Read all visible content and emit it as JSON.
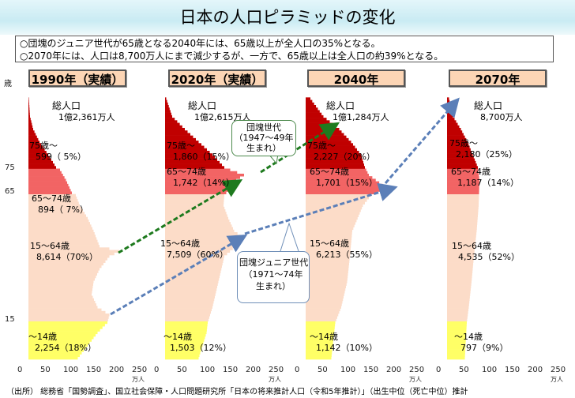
{
  "title": "日本の人口ピラミッドの変化",
  "notes": [
    "○団塊のジュニア世代が65歳となる2040年には、65歳以上が全人口の35%となる。",
    "○2070年には、人口は8,700万人にまで減少するが、一方で、65歳以上は全人口の約39%となる。"
  ],
  "footer": "（出所） 総務省「国勢調査」、国立社会保障・人口問題研究所「日本の将来推計人口（令和5年推計）」（出生中位（死亡中位）推計",
  "colors": {
    "age75plus": "#c00000",
    "age65_74": "#f26464",
    "age15_64": "#fcdcc8",
    "age0_14": "#ffff66",
    "boomer_arrow": "#1e7a1e",
    "junior_arrow": "#5b7fb8"
  },
  "chart_data": {
    "type": "bar",
    "orientation": "horizontal population pyramid (single side)",
    "yaxis_unit": "歳",
    "yticks": [
      "75",
      "65",
      "15"
    ],
    "xticks": [
      "0",
      "50",
      "100",
      "150",
      "200",
      "250"
    ],
    "xunit": "万人",
    "panels": [
      {
        "year_label": "1990年（実績）",
        "total_label": "総人口",
        "total": "1億2,361万人",
        "groups": [
          {
            "label": "75歳～",
            "value": "599（ 5%）"
          },
          {
            "label": "65～74歳",
            "value": "894（ 7%）"
          },
          {
            "label": "15～64歳",
            "value": "8,614（70%）"
          },
          {
            "label": "～14歳",
            "value": "2,254（18%）"
          }
        ],
        "profile": [
          [
            0,
            125
          ],
          [
            5,
            150
          ],
          [
            10,
            175
          ],
          [
            14,
            200
          ],
          [
            17,
            205
          ],
          [
            20,
            175
          ],
          [
            25,
            160
          ],
          [
            30,
            165
          ],
          [
            35,
            180
          ],
          [
            40,
            205
          ],
          [
            42,
            230
          ],
          [
            44,
            180
          ],
          [
            50,
            165
          ],
          [
            55,
            150
          ],
          [
            60,
            130
          ],
          [
            64,
            120
          ],
          [
            65,
            110
          ],
          [
            70,
            95
          ],
          [
            74,
            80
          ],
          [
            75,
            70
          ],
          [
            80,
            50
          ],
          [
            85,
            28
          ],
          [
            90,
            12
          ],
          [
            95,
            4
          ],
          [
            102,
            1
          ]
        ]
      },
      {
        "year_label": "2020年（実績）",
        "total_label": "総人口",
        "total": "1億2,615万人",
        "groups": [
          {
            "label": "75歳～",
            "value": "1,860（15%）"
          },
          {
            "label": "65～74歳",
            "value": "1,742（14%）"
          },
          {
            "label": "15～64歳",
            "value": "7,509（60%）"
          },
          {
            "label": "～14歳",
            "value": "1,503（12%）"
          }
        ],
        "profile": [
          [
            0,
            85
          ],
          [
            10,
            105
          ],
          [
            14,
            108
          ],
          [
            20,
            120
          ],
          [
            30,
            135
          ],
          [
            40,
            150
          ],
          [
            47,
            200
          ],
          [
            50,
            175
          ],
          [
            55,
            160
          ],
          [
            60,
            148
          ],
          [
            64,
            150
          ],
          [
            66,
            160
          ],
          [
            70,
            180
          ],
          [
            72,
            200
          ],
          [
            74,
            165
          ],
          [
            75,
            150
          ],
          [
            80,
            120
          ],
          [
            85,
            85
          ],
          [
            90,
            50
          ],
          [
            95,
            18
          ],
          [
            102,
            3
          ]
        ]
      },
      {
        "year_label": "2040年",
        "total_label": "総人口",
        "total": "1億1,284万人",
        "groups": [
          {
            "label": "75歳～",
            "value": "2,227（20%）"
          },
          {
            "label": "65～74歳",
            "value": "1,701（15%）"
          },
          {
            "label": "15～64歳",
            "value": "6,213（55%）"
          },
          {
            "label": "～14歳",
            "value": "1,142（10%）"
          }
        ],
        "profile": [
          [
            0,
            65
          ],
          [
            14,
            75
          ],
          [
            20,
            90
          ],
          [
            30,
            105
          ],
          [
            40,
            112
          ],
          [
            50,
            118
          ],
          [
            60,
            145
          ],
          [
            64,
            165
          ],
          [
            66,
            195
          ],
          [
            68,
            195
          ],
          [
            72,
            160
          ],
          [
            75,
            150
          ],
          [
            80,
            140
          ],
          [
            85,
            115
          ],
          [
            90,
            85
          ],
          [
            95,
            45
          ],
          [
            102,
            12
          ]
        ]
      },
      {
        "year_label": "2070年",
        "total_label": "総人口",
        "total": "8,700万人",
        "groups": [
          {
            "label": "75歳～",
            "value": "2,180（25%）"
          },
          {
            "label": "65～74歳",
            "value": "1,187（14%）"
          },
          {
            "label": "15～64歳",
            "value": "4,535（52%）"
          },
          {
            "label": "～14歳",
            "value": "797（9%）"
          }
        ],
        "profile": [
          [
            0,
            45
          ],
          [
            14,
            50
          ],
          [
            20,
            55
          ],
          [
            30,
            62
          ],
          [
            40,
            68
          ],
          [
            50,
            75
          ],
          [
            60,
            80
          ],
          [
            70,
            82
          ],
          [
            75,
            78
          ],
          [
            80,
            65
          ],
          [
            85,
            52
          ],
          [
            90,
            35
          ],
          [
            95,
            15
          ],
          [
            102,
            5
          ]
        ]
      }
    ],
    "annotations": [
      {
        "label": "団塊世代\n（1947～49年\n生まれ）"
      },
      {
        "label": "団塊ジュニア世代\n（1971～74年\n生まれ）"
      }
    ]
  }
}
